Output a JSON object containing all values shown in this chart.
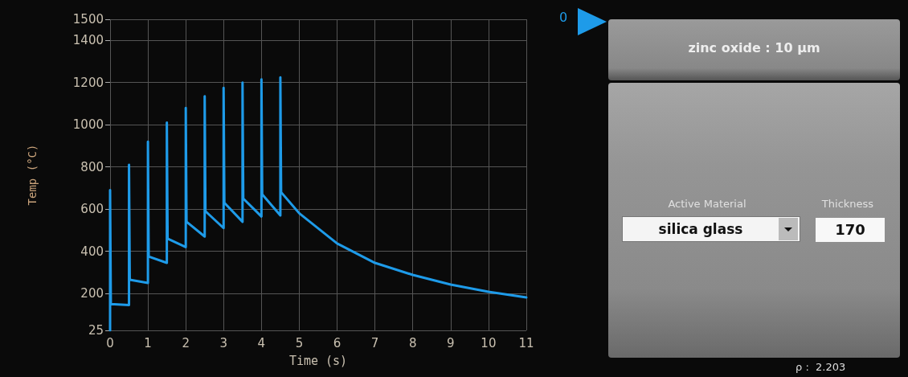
{
  "chart_data": [
    {
      "type": "line",
      "xlabel": "Time (s)",
      "ylabel": "Temp (°C)",
      "x": [
        0,
        0,
        0.02,
        0.5,
        0.5,
        0.52,
        1,
        1,
        1.02,
        1.5,
        1.5,
        1.52,
        2,
        2,
        2.02,
        2.5,
        2.5,
        2.52,
        3,
        3,
        3.02,
        3.5,
        3.5,
        3.52,
        4,
        4,
        4.02,
        4.5,
        4.5,
        4.52,
        5,
        6,
        7,
        8,
        9,
        10,
        11
      ],
      "series": [
        {
          "color": "#1e9be9",
          "values": [
            25,
            690,
            150,
            145,
            810,
            265,
            250,
            920,
            375,
            345,
            1010,
            460,
            420,
            1080,
            540,
            470,
            1135,
            590,
            510,
            1175,
            630,
            540,
            1200,
            650,
            565,
            1215,
            670,
            570,
            1225,
            680,
            580,
            437,
            345,
            288,
            242,
            208,
            181
          ]
        }
      ],
      "xlim": [
        0,
        11
      ],
      "xticks": [
        0,
        1,
        2,
        3,
        4,
        5,
        6,
        7,
        8,
        9,
        10,
        11
      ],
      "ylim": [
        25,
        1500
      ],
      "yticks": [
        25,
        200,
        400,
        600,
        800,
        1000,
        1200,
        1400,
        1500
      ],
      "grid": true,
      "marker": "none",
      "line_style": "solid"
    },
    {
      "type": "other",
      "annotations": [
        "0",
        "zinc oxide : 10 μm",
        "Active Material",
        "silica glass",
        "Thickness",
        "170",
        "ρ :  2.203"
      ]
    }
  ]
}
